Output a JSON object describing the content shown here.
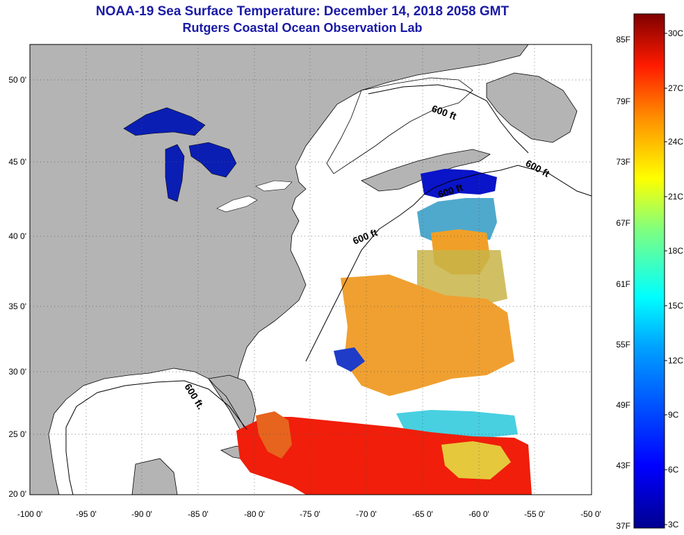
{
  "title": "NOAA-19 Sea Surface Temperature:  December 14, 2018 2058 GMT",
  "subtitle": "Rutgers Coastal Ocean Observation Lab",
  "longitude_ticks": [
    "-100 0'",
    "-95 0'",
    "-90 0'",
    "-85 0'",
    "-80 0'",
    "-75 0'",
    "-70 0'",
    "-65 0'",
    "-60 0'",
    "-55 0'",
    "-50 0'"
  ],
  "latitude_ticks": [
    "50 0'",
    "45 0'",
    "40 0'",
    "35 0'",
    "30 0'",
    "25 0'",
    "20 0'"
  ],
  "depth_contour_label": "600 ft",
  "depth_contour_label_alt": "600 ft.",
  "colorbar": {
    "fahrenheit_labels": [
      "85F",
      "79F",
      "73F",
      "67F",
      "61F",
      "55F",
      "49F",
      "43F",
      "37F"
    ],
    "celsius_labels": [
      "30C",
      "27C",
      "24C",
      "21C",
      "18C",
      "15C",
      "12C",
      "9C",
      "6C",
      "3C"
    ],
    "colors": [
      "#7f0000",
      "#ff0000",
      "#ff7f00",
      "#ffff00",
      "#7fff7f",
      "#00ffff",
      "#007fff",
      "#0000ff",
      "#00008f"
    ]
  },
  "colors": {
    "land": "#b4b4b4",
    "ocean_no_data": "#ffffff",
    "title_text": "#1a1aa6",
    "lakes": "#0a1eb4"
  }
}
